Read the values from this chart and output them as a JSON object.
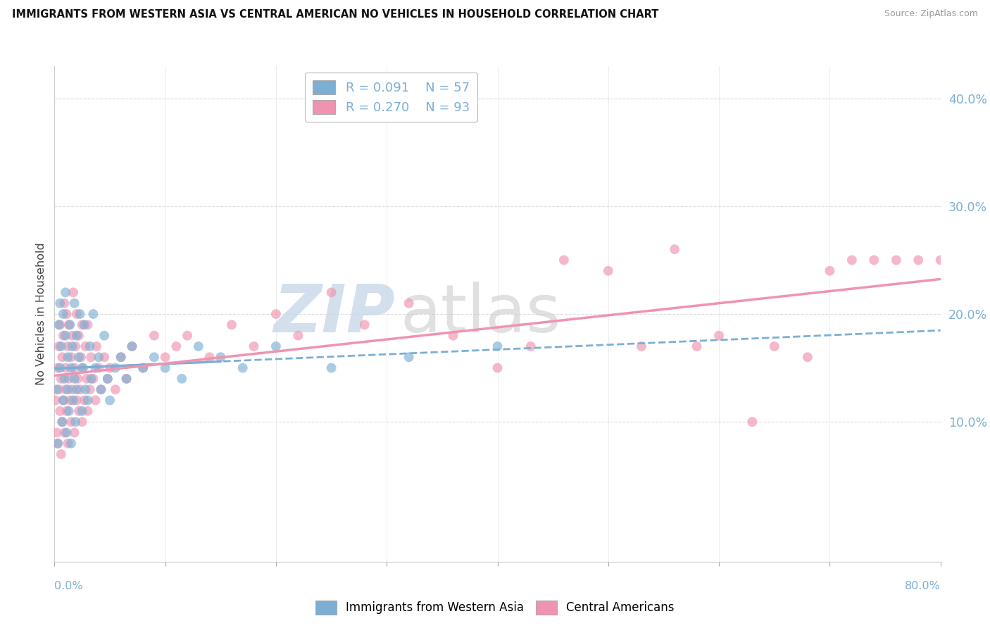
{
  "title": "IMMIGRANTS FROM WESTERN ASIA VS CENTRAL AMERICAN NO VEHICLES IN HOUSEHOLD CORRELATION CHART",
  "source": "Source: ZipAtlas.com",
  "ylabel": "No Vehicles in Household",
  "xlim": [
    0.0,
    0.8
  ],
  "ylim": [
    -0.03,
    0.43
  ],
  "yticks": [
    0.1,
    0.2,
    0.3,
    0.4
  ],
  "color_blue": "#7bafd4",
  "color_pink": "#f093b0",
  "background_color": "#ffffff",
  "legend_r1": "R = 0.091",
  "legend_n1": "N = 57",
  "legend_r2": "R = 0.270",
  "legend_n2": "N = 93",
  "blue_scatter_x": [
    0.002,
    0.003,
    0.004,
    0.005,
    0.005,
    0.006,
    0.007,
    0.008,
    0.008,
    0.009,
    0.01,
    0.01,
    0.011,
    0.012,
    0.012,
    0.013,
    0.014,
    0.015,
    0.015,
    0.016,
    0.017,
    0.018,
    0.018,
    0.019,
    0.02,
    0.02,
    0.022,
    0.023,
    0.025,
    0.025,
    0.027,
    0.028,
    0.03,
    0.032,
    0.033,
    0.035,
    0.037,
    0.04,
    0.042,
    0.045,
    0.048,
    0.05,
    0.055,
    0.06,
    0.065,
    0.07,
    0.08,
    0.09,
    0.1,
    0.115,
    0.13,
    0.15,
    0.17,
    0.2,
    0.25,
    0.32,
    0.4
  ],
  "blue_scatter_y": [
    0.13,
    0.08,
    0.19,
    0.21,
    0.15,
    0.17,
    0.1,
    0.12,
    0.2,
    0.14,
    0.22,
    0.18,
    0.09,
    0.16,
    0.13,
    0.11,
    0.19,
    0.15,
    0.08,
    0.17,
    0.12,
    0.21,
    0.14,
    0.1,
    0.18,
    0.13,
    0.16,
    0.2,
    0.11,
    0.15,
    0.19,
    0.13,
    0.12,
    0.17,
    0.14,
    0.2,
    0.15,
    0.16,
    0.13,
    0.18,
    0.14,
    0.12,
    0.15,
    0.16,
    0.14,
    0.17,
    0.15,
    0.16,
    0.15,
    0.14,
    0.17,
    0.16,
    0.15,
    0.17,
    0.15,
    0.16,
    0.17
  ],
  "pink_scatter_x": [
    0.001,
    0.002,
    0.003,
    0.003,
    0.004,
    0.004,
    0.005,
    0.005,
    0.006,
    0.006,
    0.007,
    0.007,
    0.008,
    0.008,
    0.009,
    0.009,
    0.01,
    0.01,
    0.011,
    0.011,
    0.012,
    0.012,
    0.013,
    0.013,
    0.014,
    0.015,
    0.015,
    0.016,
    0.016,
    0.017,
    0.018,
    0.018,
    0.019,
    0.02,
    0.02,
    0.021,
    0.022,
    0.022,
    0.023,
    0.024,
    0.025,
    0.025,
    0.026,
    0.027,
    0.028,
    0.029,
    0.03,
    0.03,
    0.032,
    0.033,
    0.035,
    0.037,
    0.038,
    0.04,
    0.042,
    0.045,
    0.048,
    0.05,
    0.055,
    0.06,
    0.065,
    0.07,
    0.08,
    0.09,
    0.1,
    0.11,
    0.12,
    0.14,
    0.16,
    0.18,
    0.2,
    0.22,
    0.25,
    0.28,
    0.32,
    0.36,
    0.4,
    0.43,
    0.46,
    0.5,
    0.53,
    0.56,
    0.58,
    0.6,
    0.63,
    0.65,
    0.68,
    0.7,
    0.72,
    0.74,
    0.76,
    0.78,
    0.8
  ],
  "pink_scatter_y": [
    0.12,
    0.09,
    0.15,
    0.08,
    0.13,
    0.17,
    0.11,
    0.19,
    0.14,
    0.07,
    0.16,
    0.1,
    0.18,
    0.12,
    0.21,
    0.09,
    0.15,
    0.13,
    0.2,
    0.11,
    0.17,
    0.08,
    0.14,
    0.19,
    0.12,
    0.16,
    0.1,
    0.18,
    0.13,
    0.22,
    0.15,
    0.09,
    0.17,
    0.12,
    0.2,
    0.14,
    0.11,
    0.18,
    0.13,
    0.16,
    0.1,
    0.19,
    0.15,
    0.12,
    0.17,
    0.14,
    0.11,
    0.19,
    0.13,
    0.16,
    0.14,
    0.12,
    0.17,
    0.15,
    0.13,
    0.16,
    0.14,
    0.15,
    0.13,
    0.16,
    0.14,
    0.17,
    0.15,
    0.18,
    0.16,
    0.17,
    0.18,
    0.16,
    0.19,
    0.17,
    0.2,
    0.18,
    0.22,
    0.19,
    0.21,
    0.18,
    0.15,
    0.17,
    0.25,
    0.24,
    0.17,
    0.26,
    0.17,
    0.18,
    0.1,
    0.17,
    0.16,
    0.24,
    0.25,
    0.25,
    0.25,
    0.25,
    0.25
  ]
}
